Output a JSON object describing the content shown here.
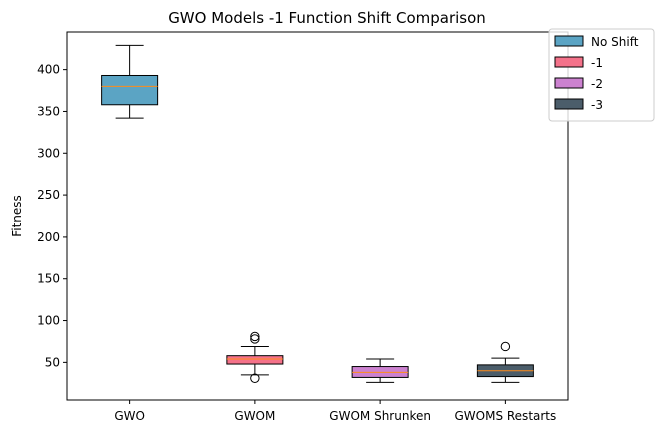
{
  "chart_data": {
    "type": "box",
    "title": "GWO Models -1 Function Shift Comparison",
    "xlabel": "",
    "ylabel": "Fitness",
    "ylim": [
      5,
      445
    ],
    "yticks": [
      50,
      100,
      150,
      200,
      250,
      300,
      350,
      400
    ],
    "categories": [
      "GWO",
      "GWOM",
      "GWOM Shrunken",
      "GWOMS Restarts"
    ],
    "series": [
      {
        "name": "No Shift",
        "color": "#5ba4c4",
        "whisker_low": 342,
        "q1": 358,
        "median": 380,
        "q3": 393,
        "whisker_high": 429,
        "outliers": []
      },
      {
        "name": "-1",
        "color": "#f4728a",
        "whisker_low": 35,
        "q1": 48,
        "median": 54,
        "q3": 58,
        "whisker_high": 69,
        "outliers": [
          31,
          78,
          81
        ]
      },
      {
        "name": "-2",
        "color": "#cc82d0",
        "whisker_low": 26,
        "q1": 32,
        "median": 38,
        "q3": 45,
        "whisker_high": 54,
        "outliers": []
      },
      {
        "name": "-3",
        "color": "#4b5d6a",
        "whisker_low": 26,
        "q1": 33,
        "median": 40,
        "q3": 47,
        "whisker_high": 55,
        "outliers": [
          69
        ]
      }
    ],
    "median_color": "#ff8c1a",
    "grid": false,
    "legend_position": "top-right"
  }
}
